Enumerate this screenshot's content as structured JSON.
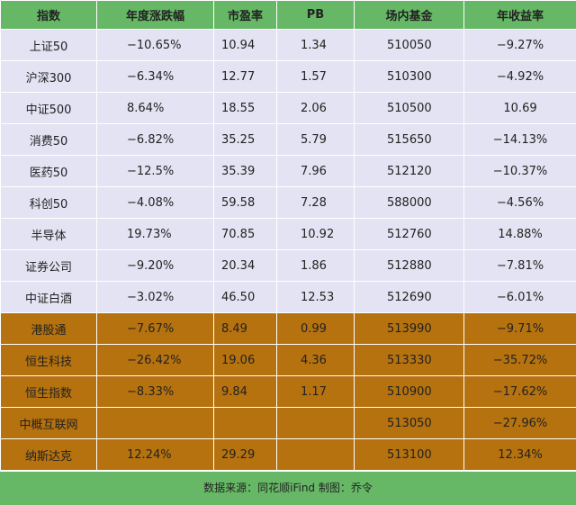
{
  "table": {
    "header": [
      "指数",
      "年度涨跌幅",
      "市盈率",
      "PB",
      "场内基金",
      "年收益率"
    ],
    "rows": [
      [
        "上证50",
        "−10.65%",
        "10.94",
        "1.34",
        "510050",
        "−9.27%"
      ],
      [
        "沪深300",
        "−6.34%",
        "12.77",
        "1.57",
        "510300",
        "−4.92%"
      ],
      [
        "中证500",
        "8.64%",
        "18.55",
        "2.06",
        "510500",
        "10.69"
      ],
      [
        "消费50",
        "−6.82%",
        "35.25",
        "5.79",
        "515650",
        "−14.13%"
      ],
      [
        "医药50",
        "−12.5%",
        "35.39",
        "7.96",
        "512120",
        "−10.37%"
      ],
      [
        "科创50",
        "−4.08%",
        "59.58",
        "7.28",
        "588000",
        "−4.56%"
      ],
      [
        "半导体",
        "19.73%",
        "70.85",
        "10.92",
        "512760",
        "14.88%"
      ],
      [
        "证券公司",
        "−9.20%",
        "20.34",
        "1.86",
        "512880",
        "−7.81%"
      ],
      [
        "中证白酒",
        "−3.02%",
        "46.50",
        "12.53",
        "512690",
        "−6.01%"
      ],
      [
        "港股通",
        "−7.67%",
        "8.49",
        "0.99",
        "513990",
        "−9.71%"
      ],
      [
        "恒生科技",
        "−26.42%",
        "19.06",
        "4.36",
        "513330",
        "−35.72%"
      ],
      [
        "恒生指数",
        "−8.33%",
        "9.84",
        "1.17",
        "510900",
        "−17.62%"
      ],
      [
        "中概互联网",
        null,
        null,
        null,
        "513050",
        "−27.96%"
      ],
      [
        "纳斯达克",
        "12.24%",
        "29.29",
        null,
        "513100",
        "12.34%"
      ]
    ],
    "footer": "数据来源：同花顺iFind 制图：乔令"
  }
}
